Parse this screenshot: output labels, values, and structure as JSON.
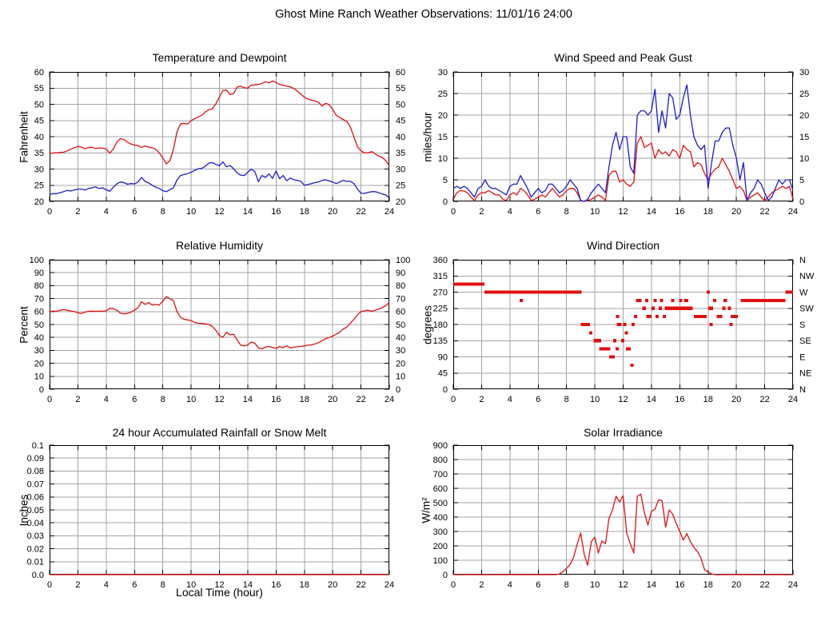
{
  "header": {
    "title": "Ghost Mine Ranch Weather Observations: 11/01/16 24:00"
  },
  "colors": {
    "red": "#e01010",
    "blue": "#1c1ccc",
    "grid": "#a4a4a4",
    "border": "#000000",
    "background": "#ffffff"
  },
  "chart_data": [
    {
      "id": "temperature-dewpoint",
      "type": "line",
      "col": 0,
      "row": 0,
      "title": "Temperature and Dewpoint",
      "ylabel": "Fahrenheit",
      "xlim": [
        0,
        24
      ],
      "xtick_step": 2,
      "xtick_labels": [
        "0",
        "2",
        "4",
        "6",
        "8",
        "10",
        "12",
        "14",
        "16",
        "18",
        "20",
        "22",
        "24"
      ],
      "ylim": [
        20,
        60
      ],
      "ytick_step": 5,
      "ytick_labels": [
        "20",
        "25",
        "30",
        "35",
        "40",
        "45",
        "50",
        "55",
        "60"
      ],
      "right_labels": [
        "20",
        "25",
        "30",
        "35",
        "40",
        "45",
        "50",
        "55",
        "60"
      ],
      "grid": true,
      "series": [
        {
          "name": "temperature",
          "color": "red",
          "x0": 0,
          "dx": 0.25,
          "y": [
            34.8,
            35,
            35,
            35.1,
            35.2,
            35.6,
            36.2,
            36.6,
            37,
            36.8,
            36.3,
            36.6,
            36.7,
            36.4,
            36.5,
            36.5,
            36.2,
            34.9,
            36.2,
            38.3,
            39.4,
            39.1,
            38.3,
            37.7,
            37.4,
            37.2,
            36.7,
            37.1,
            36.8,
            36.6,
            36.1,
            35,
            33.4,
            31.6,
            32.6,
            36,
            41.5,
            43.9,
            44.1,
            43.9,
            45,
            45.5,
            46.1,
            46.6,
            47.6,
            48.3,
            48.6,
            50.2,
            52.3,
            54.3,
            54.4,
            53,
            53.3,
            55.3,
            55.6,
            55.1,
            55,
            55.9,
            56,
            56.1,
            56.5,
            57,
            56.6,
            57.2,
            56.8,
            56.1,
            55.9,
            55.6,
            55.4,
            54.9,
            54.1,
            53.1,
            52.2,
            51.6,
            51.3,
            51,
            50.6,
            49.4,
            50.3,
            49.9,
            48.4,
            46.6,
            45.9,
            45.3,
            44.7,
            43,
            39.9,
            36.9,
            35.6,
            35,
            35,
            35.4,
            34.7,
            34,
            33.6,
            32.6,
            31
          ]
        },
        {
          "name": "dewpoint",
          "color": "blue",
          "x0": 0,
          "dx": 0.25,
          "y": [
            22.2,
            22.4,
            22.4,
            22.7,
            23,
            23.4,
            23.2,
            23.5,
            23.8,
            23.8,
            23.5,
            24,
            24.2,
            24.5,
            24,
            24.2,
            23.6,
            23.1,
            24.4,
            25.4,
            26,
            25.8,
            25.3,
            25.5,
            25.4,
            26,
            27.4,
            26.2,
            25.7,
            25,
            24.4,
            24,
            23.3,
            23,
            23.6,
            24.2,
            26.6,
            28,
            28.3,
            28.6,
            29,
            29.6,
            30.1,
            30.2,
            30.9,
            31.8,
            32,
            31.4,
            31,
            32.2,
            30.7,
            31.1,
            30.1,
            28.8,
            28.1,
            28,
            29,
            30,
            29.2,
            26.1,
            28,
            27.4,
            28.5,
            27.1,
            29.4,
            27,
            28,
            26.4,
            27.2,
            26.7,
            26.5,
            26.2,
            25,
            25.2,
            25.5,
            25.8,
            26,
            26.5,
            26.7,
            26.3,
            26,
            25.5,
            26,
            26.5,
            26.2,
            26.2,
            25.5,
            23.8,
            22.5,
            22.5,
            22.8,
            23,
            23,
            22.7,
            22.3,
            22,
            21
          ]
        }
      ]
    },
    {
      "id": "wind-speed-gust",
      "type": "line",
      "col": 1,
      "row": 0,
      "title": "Wind Speed and Peak Gust",
      "ylabel": "miles/hour",
      "xlim": [
        0,
        24
      ],
      "xtick_step": 2,
      "xtick_labels": [
        "0",
        "2",
        "4",
        "6",
        "8",
        "10",
        "12",
        "14",
        "16",
        "18",
        "20",
        "22",
        "24"
      ],
      "ylim": [
        0,
        30
      ],
      "ytick_step": 5,
      "ytick_labels": [
        "0",
        "5",
        "10",
        "15",
        "20",
        "25",
        "30"
      ],
      "right_labels": [
        "0",
        "5",
        "10",
        "15",
        "20",
        "25",
        "30"
      ],
      "grid": true,
      "series": [
        {
          "name": "wind-speed",
          "color": "red",
          "x0": 0,
          "dx": 0.25,
          "y": [
            0.5,
            2,
            2.5,
            2.4,
            2,
            1,
            0.2,
            1.5,
            2,
            2,
            2.5,
            2,
            1.5,
            1.5,
            0.5,
            0.2,
            1.5,
            2,
            1.5,
            3,
            2.5,
            1.5,
            0.2,
            0.5,
            1,
            1.5,
            1,
            2,
            3,
            2,
            1,
            1.5,
            2.5,
            3,
            3,
            2,
            0.2,
            0,
            0.2,
            0.5,
            1,
            1.5,
            1,
            0.2,
            6,
            7,
            7,
            4.5,
            5,
            4,
            3.5,
            4.5,
            13.5,
            15,
            12.5,
            13,
            13.5,
            10,
            12,
            11,
            11.5,
            10.5,
            12,
            11.5,
            10,
            13,
            12,
            11.5,
            8,
            9,
            8.5,
            6.5,
            5,
            6.5,
            7.5,
            8,
            10,
            8.5,
            7,
            5,
            3,
            3.5,
            2.5,
            0.2,
            1,
            1.5,
            2,
            1,
            0.2,
            1,
            2,
            2.5,
            3,
            3.5,
            3,
            3.5,
            0.5
          ]
        },
        {
          "name": "peak-gust",
          "color": "blue",
          "x0": 0,
          "dx": 0.25,
          "y": [
            3,
            3.5,
            3,
            3.5,
            3,
            2,
            1,
            3,
            3.5,
            5,
            3.5,
            3,
            3,
            2.5,
            2,
            1.5,
            3.5,
            4,
            4,
            6,
            4.5,
            3,
            1,
            2,
            3,
            2,
            2.5,
            4,
            4,
            3,
            2,
            2.5,
            3.5,
            5,
            4,
            3,
            0.2,
            0,
            0.5,
            2,
            3,
            4,
            3,
            2,
            8,
            13,
            16,
            12,
            15,
            15,
            8,
            6.5,
            20,
            21,
            21,
            20,
            21,
            26,
            16,
            21,
            17,
            25,
            24,
            19,
            20,
            24,
            27,
            20,
            15,
            13,
            12,
            13,
            3,
            9,
            14,
            14,
            16,
            17,
            17,
            13,
            10,
            5,
            9,
            0.2,
            2,
            3,
            5,
            4,
            2,
            0.2,
            1,
            3,
            5,
            4,
            5,
            5,
            2.5
          ]
        }
      ]
    },
    {
      "id": "relative-humidity",
      "type": "line",
      "col": 0,
      "row": 1,
      "title": "Relative Humidity",
      "ylabel": "Percent",
      "xlim": [
        0,
        24
      ],
      "xtick_step": 2,
      "xtick_labels": [
        "0",
        "2",
        "4",
        "6",
        "8",
        "10",
        "12",
        "14",
        "16",
        "18",
        "20",
        "22",
        "24"
      ],
      "ylim": [
        0,
        100
      ],
      "ytick_step": 10,
      "ytick_labels": [
        "0",
        "10",
        "20",
        "30",
        "40",
        "50",
        "60",
        "70",
        "80",
        "90",
        "100"
      ],
      "right_labels": [
        "0",
        "10",
        "20",
        "30",
        "40",
        "50",
        "60",
        "70",
        "80",
        "90",
        "100"
      ],
      "grid": true,
      "series": [
        {
          "name": "relative-humidity",
          "color": "red",
          "x0": 0,
          "dx": 0.25,
          "y": [
            60,
            60.3,
            60.2,
            61,
            61.5,
            61,
            60.3,
            60,
            59,
            58.5,
            59.5,
            60.2,
            60.3,
            60.2,
            60.3,
            60.2,
            60.5,
            62.5,
            62.2,
            61,
            58.8,
            58.2,
            58.5,
            59.5,
            61,
            63,
            67.5,
            65.5,
            67,
            65,
            65.5,
            65,
            68,
            71.5,
            69.8,
            68.5,
            60,
            55.5,
            54,
            53.5,
            53,
            51.5,
            51,
            50.8,
            50.5,
            50,
            48.5,
            45.5,
            41.5,
            40.2,
            44,
            42,
            42.5,
            38,
            34,
            33.5,
            34.2,
            36.5,
            35.5,
            32,
            31.2,
            32.5,
            33,
            32.2,
            31.5,
            33,
            32,
            33.5,
            32,
            32.5,
            32.8,
            33,
            33.5,
            34,
            34.2,
            35,
            36,
            37.5,
            39,
            40,
            41,
            42.5,
            44,
            46.5,
            48,
            51,
            54,
            57.5,
            60,
            60.5,
            61,
            60.2,
            61,
            62,
            63,
            64.5,
            67
          ]
        }
      ]
    },
    {
      "id": "wind-direction",
      "type": "scatter",
      "col": 1,
      "row": 1,
      "title": "Wind Direction",
      "ylabel": "degrees",
      "xlim": [
        0,
        24
      ],
      "xtick_step": 2,
      "xtick_labels": [
        "0",
        "2",
        "4",
        "6",
        "8",
        "10",
        "12",
        "14",
        "16",
        "18",
        "20",
        "22",
        "24"
      ],
      "ylim": [
        0,
        360
      ],
      "ytick_step": 45,
      "ytick_labels": [
        "0",
        "45",
        "90",
        "135",
        "180",
        "225",
        "270",
        "315",
        "360"
      ],
      "right_labels": [
        "N",
        "NE",
        "E",
        "SE",
        "S",
        "SW",
        "W",
        "NW",
        "N"
      ],
      "grid": true,
      "segments": [
        [
          0,
          2.2,
          292
        ],
        [
          2.2,
          9.05,
          270
        ],
        [
          4.7,
          4.8,
          247
        ],
        [
          9.0,
          9.65,
          180
        ],
        [
          9.6,
          9.7,
          157
        ],
        [
          9.9,
          10.45,
          135
        ],
        [
          10.3,
          11.1,
          112
        ],
        [
          11.0,
          11.4,
          90
        ],
        [
          11.3,
          11.4,
          135
        ],
        [
          11.45,
          11.55,
          112
        ],
        [
          11.5,
          11.6,
          202
        ],
        [
          11.55,
          11.9,
          180
        ],
        [
          11.85,
          11.95,
          135
        ],
        [
          12.0,
          12.2,
          180
        ],
        [
          12.1,
          12.2,
          157
        ],
        [
          12.2,
          12.55,
          112
        ],
        [
          12.5,
          12.6,
          67
        ],
        [
          12.6,
          12.7,
          180
        ],
        [
          12.75,
          12.9,
          202
        ],
        [
          12.9,
          13.3,
          247
        ],
        [
          13.35,
          13.6,
          225
        ],
        [
          13.55,
          13.65,
          247
        ],
        [
          13.65,
          14.0,
          202
        ],
        [
          14.0,
          14.2,
          225
        ],
        [
          14.15,
          14.3,
          247
        ],
        [
          14.3,
          14.45,
          202
        ],
        [
          14.5,
          14.75,
          225
        ],
        [
          14.6,
          14.75,
          247
        ],
        [
          14.8,
          14.95,
          202
        ],
        [
          14.95,
          16.9,
          225
        ],
        [
          15.4,
          15.6,
          247
        ],
        [
          15.95,
          16.15,
          247
        ],
        [
          16.3,
          16.6,
          247
        ],
        [
          17.0,
          17.9,
          202
        ],
        [
          17.9,
          18.0,
          270
        ],
        [
          18.0,
          18.35,
          225
        ],
        [
          18.1,
          18.2,
          180
        ],
        [
          18.35,
          18.55,
          247
        ],
        [
          18.6,
          19.0,
          202
        ],
        [
          19.0,
          19.2,
          225
        ],
        [
          19.1,
          19.35,
          247
        ],
        [
          19.4,
          19.6,
          225
        ],
        [
          19.5,
          19.65,
          180
        ],
        [
          19.6,
          20.1,
          202
        ],
        [
          20.3,
          23.45,
          247
        ],
        [
          23.45,
          24.0,
          270
        ]
      ]
    },
    {
      "id": "rainfall",
      "type": "line",
      "col": 0,
      "row": 2,
      "title": "24 hour Accumulated Rainfall or Snow Melt",
      "ylabel": "Inches",
      "xlabel": "Local Time (hour)",
      "xlim": [
        0,
        24
      ],
      "xtick_step": 2,
      "xtick_labels": [
        "0",
        "2",
        "4",
        "6",
        "8",
        "10",
        "12",
        "14",
        "16",
        "18",
        "20",
        "22",
        "24"
      ],
      "ylim": [
        0,
        0.1
      ],
      "ytick_step": 0.01,
      "ytick_labels": [
        "0.0",
        "0.01",
        "0.02",
        "0.03",
        "0.04",
        "0.05",
        "0.06",
        "0.07",
        "0.08",
        "0.09",
        "0.1"
      ],
      "right_labels": null,
      "grid": true,
      "series": [
        {
          "name": "rainfall",
          "color": "red",
          "x": [
            0,
            24
          ],
          "y": [
            0,
            0
          ]
        }
      ]
    },
    {
      "id": "solar-irradiance",
      "type": "line",
      "col": 1,
      "row": 2,
      "title": "Solar Irradiance",
      "ylabel": "W/m²",
      "xlim": [
        0,
        24
      ],
      "xtick_step": 2,
      "xtick_labels": [
        "0",
        "2",
        "4",
        "6",
        "8",
        "10",
        "12",
        "14",
        "16",
        "18",
        "20",
        "22",
        "24"
      ],
      "ylim": [
        0,
        900
      ],
      "ytick_step": 100,
      "ytick_labels": [
        "0",
        "100",
        "200",
        "300",
        "400",
        "500",
        "600",
        "700",
        "800",
        "900"
      ],
      "right_labels": null,
      "grid": true,
      "series": [
        {
          "name": "solar-irradiance",
          "color": "red",
          "x0": 0,
          "dx": 0.25,
          "y": [
            0,
            0,
            0,
            0,
            0,
            0,
            0,
            0,
            0,
            0,
            0,
            0,
            0,
            0,
            0,
            0,
            0,
            0,
            0,
            0,
            0,
            0,
            0,
            0,
            0,
            0,
            0,
            0,
            0,
            0,
            5,
            20,
            45,
            70,
            120,
            210,
            290,
            140,
            65,
            230,
            260,
            150,
            235,
            215,
            390,
            450,
            545,
            505,
            550,
            290,
            215,
            150,
            545,
            560,
            430,
            345,
            440,
            455,
            520,
            515,
            330,
            450,
            420,
            355,
            300,
            240,
            285,
            230,
            190,
            160,
            115,
            35,
            18,
            5,
            0,
            0,
            0,
            0,
            0,
            0,
            0,
            0,
            0,
            0,
            0,
            0,
            0,
            0,
            0,
            0,
            0,
            0,
            0,
            0,
            0,
            0,
            0
          ]
        }
      ]
    }
  ]
}
